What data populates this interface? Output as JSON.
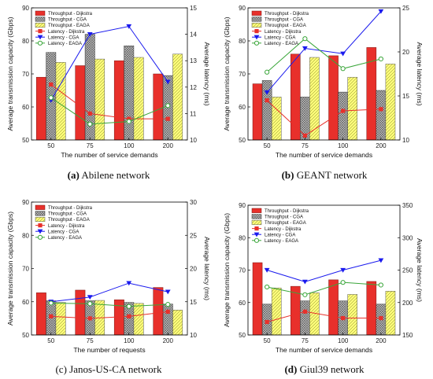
{
  "panels": [
    {
      "caption_bold": "(a)",
      "caption_rest": " Abilene network",
      "chart_data": {
        "type": "bar+line",
        "categories": [
          "50",
          "75",
          "100",
          "200"
        ],
        "xlabel": "The number of service demands",
        "ylabel": "Average transmission capacity (Gbps)",
        "y2label": "Average latency (ms)",
        "ylim": [
          50,
          90
        ],
        "yticks": [
          50,
          60,
          70,
          80,
          90
        ],
        "y2lim": [
          10,
          15
        ],
        "y2ticks": [
          10,
          11,
          12,
          13,
          14,
          15
        ],
        "bar_series": [
          {
            "name": "Throughput - Dijkstra",
            "values": [
              69,
              72.5,
              74,
              70
            ]
          },
          {
            "name": "Throughput - CGA",
            "values": [
              76.5,
              82,
              78.5,
              69.5
            ]
          },
          {
            "name": "Throughput - EAGA",
            "values": [
              73.5,
              74.5,
              75,
              76
            ]
          }
        ],
        "line_series": [
          {
            "name": "Latency - Dijkstra",
            "values": [
              12.1,
              11.0,
              10.8,
              10.8
            ]
          },
          {
            "name": "Latency - CGA",
            "values": [
              11.5,
              14.0,
              14.3,
              12.2
            ]
          },
          {
            "name": "Latency - EAGA",
            "values": [
              11.6,
              10.6,
              10.7,
              11.3
            ]
          }
        ],
        "legend": "top-left"
      }
    },
    {
      "caption_bold": "(b)",
      "caption_rest": " GEANT network",
      "chart_data": {
        "type": "bar+line",
        "categories": [
          "50",
          "75",
          "100",
          "200"
        ],
        "xlabel": "The number of service demands",
        "ylabel": "Average transmission capacity (Gbps)",
        "y2label": "Average latency (ms)",
        "ylim": [
          50,
          90
        ],
        "yticks": [
          50,
          60,
          70,
          80,
          90
        ],
        "y2lim": [
          10,
          25
        ],
        "y2ticks": [
          10,
          15,
          20,
          25
        ],
        "bar_series": [
          {
            "name": "Throughput - Dijkstra",
            "values": [
              67,
              76,
              75.5,
              78
            ]
          },
          {
            "name": "Throughput - CGA",
            "values": [
              68,
              63,
              64.5,
              65
            ]
          },
          {
            "name": "Throughput - EAGA",
            "values": [
              63,
              75,
              69,
              73
            ]
          }
        ],
        "line_series": [
          {
            "name": "Latency - Dijkstra",
            "values": [
              14.5,
              10.5,
              13.3,
              13.5
            ]
          },
          {
            "name": "Latency - CGA",
            "values": [
              15.4,
              20.4,
              19.8,
              24.6
            ]
          },
          {
            "name": "Latency - EAGA",
            "values": [
              17.7,
              21.5,
              18.1,
              19.2
            ]
          }
        ],
        "legend": "top-left"
      }
    },
    {
      "caption_bold": "",
      "caption_rest": "(c) Janos-US-CA network",
      "chart_data": {
        "type": "bar+line",
        "categories": [
          "50",
          "75",
          "100",
          "200"
        ],
        "xlabel": "The number of requests",
        "ylabel": "Average transmission capacity (Gbps)",
        "y2label": "Average latency (ms)",
        "ylim": [
          50,
          90
        ],
        "yticks": [
          50,
          60,
          70,
          80,
          90
        ],
        "y2lim": [
          10,
          30
        ],
        "y2ticks": [
          10,
          15,
          20,
          25,
          30
        ],
        "bar_series": [
          {
            "name": "Throughput - Dijkstra",
            "values": [
              62.7,
              63.5,
              60.6,
              64.3
            ]
          },
          {
            "name": "Throughput - CGA",
            "values": [
              60.3,
              60.3,
              59.8,
              59.3
            ]
          },
          {
            "name": "Throughput - EAGA",
            "values": [
              59.8,
              60.4,
              59.5,
              57.5
            ]
          }
        ],
        "line_series": [
          {
            "name": "Latency - Dijkstra",
            "values": [
              12.8,
              12.5,
              12.8,
              13.5
            ]
          },
          {
            "name": "Latency - CGA",
            "values": [
              15.0,
              15.7,
              17.8,
              16.5
            ]
          },
          {
            "name": "Latency - EAGA",
            "values": [
              14.8,
              14.7,
              14.3,
              14.6
            ]
          }
        ],
        "legend": "top-left"
      }
    },
    {
      "caption_bold": "(d)",
      "caption_rest": " Giul39 network",
      "chart_data": {
        "type": "bar+line",
        "categories": [
          "50",
          "75",
          "100",
          "200"
        ],
        "xlabel": "The number of service demands",
        "ylabel": "Average transmission capacity (Gbps)",
        "y2label": "Average latency (ms)",
        "ylim": [
          50,
          90
        ],
        "yticks": [
          50,
          60,
          70,
          80,
          90
        ],
        "y2lim": [
          150,
          350
        ],
        "y2ticks": [
          150,
          200,
          250,
          300,
          350
        ],
        "bar_series": [
          {
            "name": "Throughput - Dijkstra",
            "values": [
              72.3,
              65,
              67,
              66.5
            ]
          },
          {
            "name": "Throughput - CGA",
            "values": [
              59.5,
              60.5,
              60.5,
              59.5
            ]
          },
          {
            "name": "Throughput - EAGA",
            "values": [
              64.5,
              63,
              62.5,
              63.5
            ]
          }
        ],
        "line_series": [
          {
            "name": "Latency - Dijkstra",
            "values": [
              170,
              186,
              176,
              176
            ]
          },
          {
            "name": "Latency - CGA",
            "values": [
              250,
              232,
              250,
              265
            ]
          },
          {
            "name": "Latency - EAGA",
            "values": [
              224,
              212,
              231,
              227
            ]
          }
        ],
        "legend": "top-left"
      }
    }
  ],
  "style": {
    "bar_colors": [
      "#e8302b",
      "#b9b9b9",
      "#ffff77"
    ],
    "bar_strokes": [
      "#7a1410",
      "#333333",
      "#555555"
    ],
    "line_colors": [
      "#e8302b",
      "#1a1aee",
      "#3aa63a"
    ],
    "line_markers": [
      "square",
      "triangle-down",
      "circle-open"
    ]
  }
}
